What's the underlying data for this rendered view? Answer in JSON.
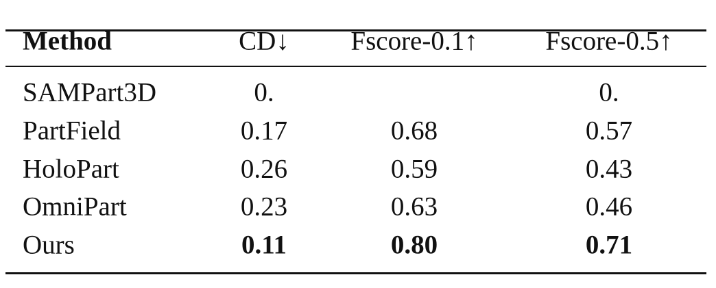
{
  "table": {
    "header": [
      "Method",
      "CD↓",
      "Fscore-0.1↑",
      "Fscore-0.5↑"
    ],
    "rows": [
      [
        "SAMPart3D",
        "0.",
        null,
        "0."
      ],
      [
        "PartField",
        "0.17",
        "0.68",
        "0.57"
      ],
      [
        "HoloPart",
        "0.26",
        "0.59",
        "0.43"
      ],
      [
        "OmniPart",
        "0.23",
        "0.63",
        "0.46"
      ],
      [
        "Ours",
        "0.11",
        "0.80",
        "0.71"
      ]
    ]
  }
}
